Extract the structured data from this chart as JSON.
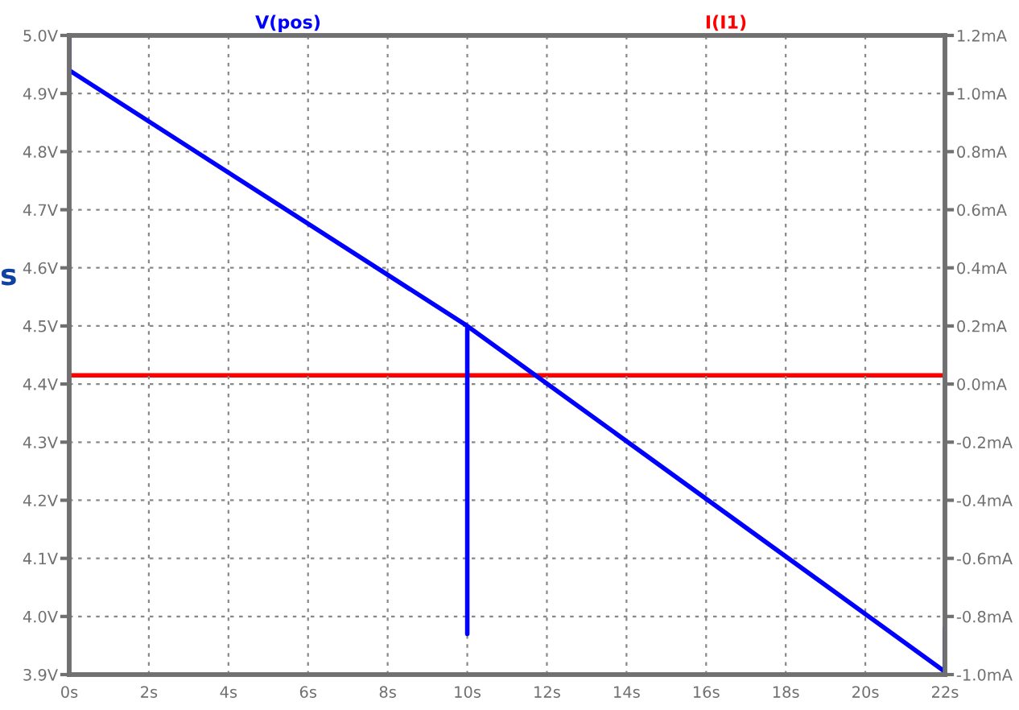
{
  "chart_data": {
    "type": "line",
    "series": [
      {
        "name": "V(pos)",
        "color": "#0000ff",
        "x": [
          0,
          0,
          10,
          10,
          10,
          22,
          22
        ],
        "values": [
          5.0,
          4.94,
          4.5,
          3.97,
          4.5,
          3.905,
          3.98
        ]
      },
      {
        "name": "I(I1)",
        "color": "#ff0000",
        "axis": "y2",
        "x": [
          0,
          22
        ],
        "values": [
          0.03,
          0.03
        ]
      }
    ],
    "xlim": [
      0,
      22
    ],
    "xticks": [
      {
        "value": 0,
        "label": "0s"
      },
      {
        "value": 2,
        "label": "2s"
      },
      {
        "value": 4,
        "label": "4s"
      },
      {
        "value": 6,
        "label": "6s"
      },
      {
        "value": 8,
        "label": "8s"
      },
      {
        "value": 10,
        "label": "10s"
      },
      {
        "value": 12,
        "label": "12s"
      },
      {
        "value": 14,
        "label": "14s"
      },
      {
        "value": 16,
        "label": "16s"
      },
      {
        "value": 18,
        "label": "18s"
      },
      {
        "value": 20,
        "label": "20s"
      },
      {
        "value": 22,
        "label": "22s"
      }
    ],
    "ylim": [
      3.9,
      5.0
    ],
    "yticks": [
      {
        "value": 3.9,
        "label": "3.9V"
      },
      {
        "value": 4.0,
        "label": "4.0V"
      },
      {
        "value": 4.1,
        "label": "4.1V"
      },
      {
        "value": 4.2,
        "label": "4.2V"
      },
      {
        "value": 4.3,
        "label": "4.3V"
      },
      {
        "value": 4.4,
        "label": "4.4V"
      },
      {
        "value": 4.5,
        "label": "4.5V"
      },
      {
        "value": 4.6,
        "label": "4.6V"
      },
      {
        "value": 4.7,
        "label": "4.7V"
      },
      {
        "value": 4.8,
        "label": "4.8V"
      },
      {
        "value": 4.9,
        "label": "4.9V"
      },
      {
        "value": 5.0,
        "label": "5.0V"
      }
    ],
    "y2lim": [
      -1.0,
      1.2
    ],
    "y2ticks": [
      {
        "value": -1.0,
        "label": "-1.0mA"
      },
      {
        "value": -0.8,
        "label": "-0.8mA"
      },
      {
        "value": -0.6,
        "label": "-0.6mA"
      },
      {
        "value": -0.4,
        "label": "-0.4mA"
      },
      {
        "value": -0.2,
        "label": "-0.2mA"
      },
      {
        "value": 0.0,
        "label": "0.0mA"
      },
      {
        "value": 0.2,
        "label": "0.2mA"
      },
      {
        "value": 0.4,
        "label": "0.4mA"
      },
      {
        "value": 0.6,
        "label": "0.6mA"
      },
      {
        "value": 0.8,
        "label": "0.8mA"
      },
      {
        "value": 1.0,
        "label": "1.0mA"
      },
      {
        "value": 1.2,
        "label": "1.2mA"
      }
    ],
    "annotations": [
      "s"
    ],
    "grid": true,
    "legend": "top",
    "line_style": "solid",
    "marker": "none"
  }
}
